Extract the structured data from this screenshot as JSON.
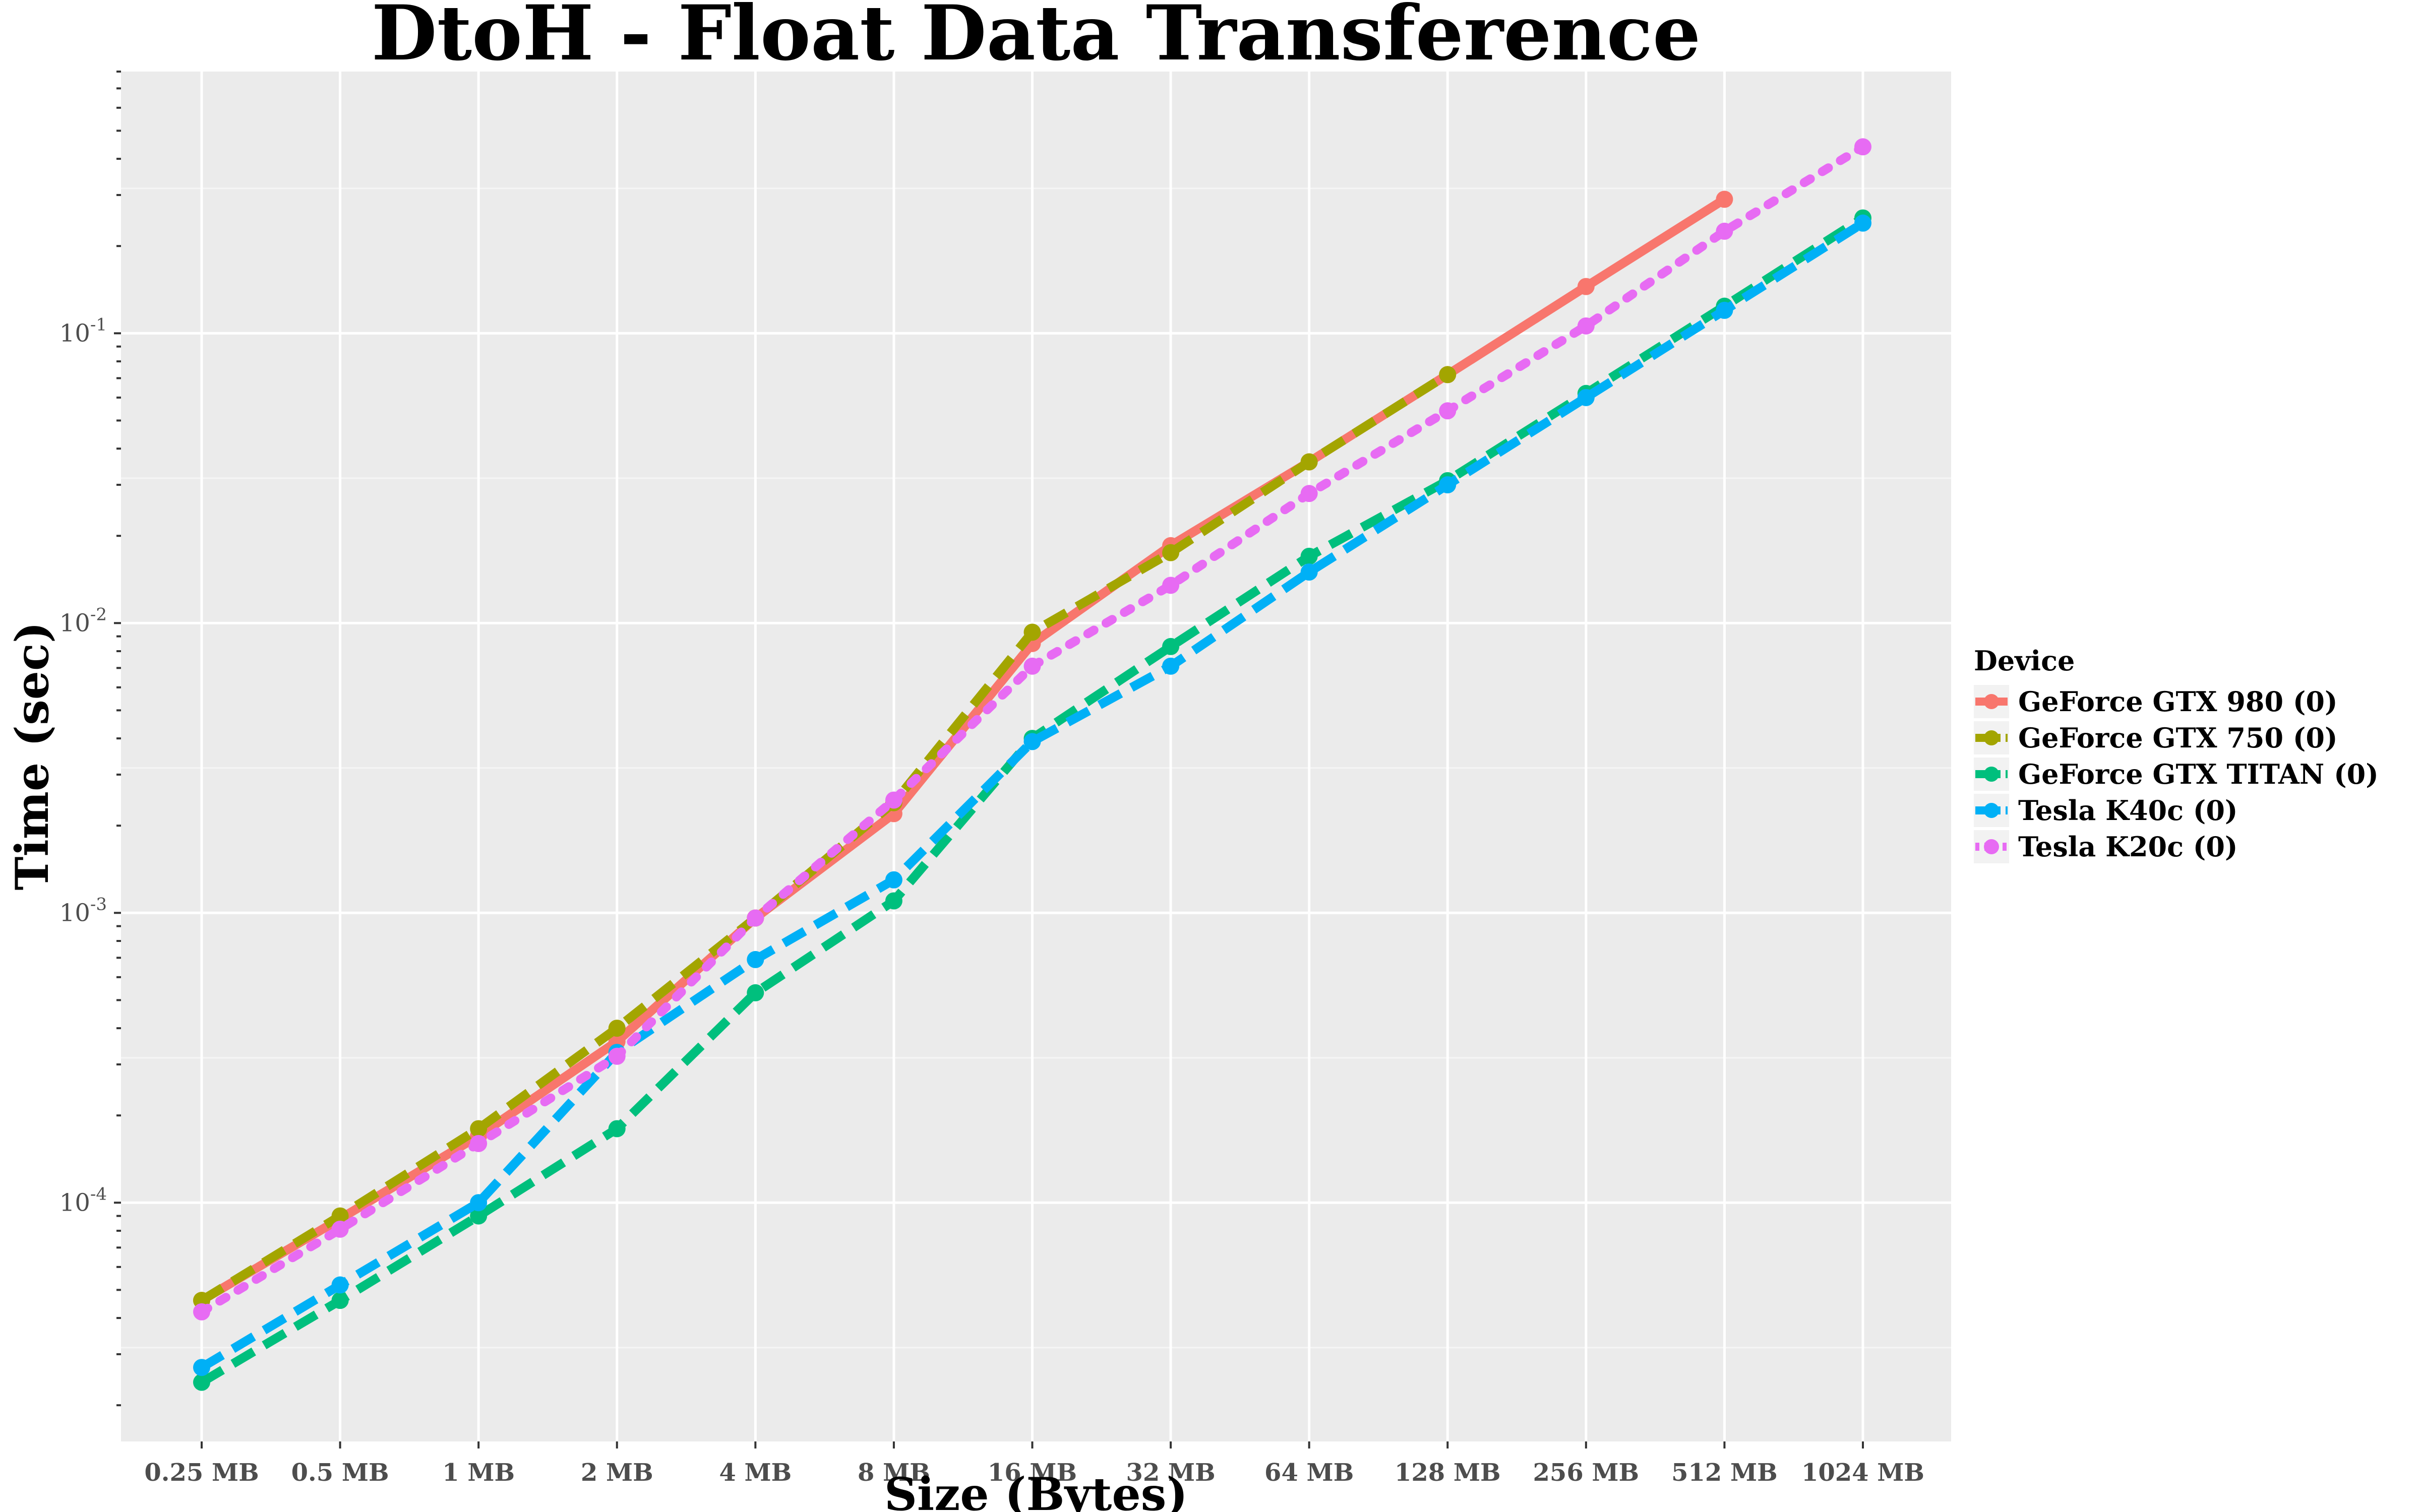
{
  "chart_data": {
    "type": "line",
    "title": "DtoH - Float Data Transference",
    "xlabel": "Size (Bytes)",
    "ylabel": "Time (sec)",
    "y_scale": "log",
    "ylim": [
      1.5e-05,
      0.8
    ],
    "grid": true,
    "legend": {
      "title": "Device",
      "position": "right"
    },
    "categories": [
      "0.25 MB",
      "0.5 MB",
      "1 MB",
      "2 MB",
      "4 MB",
      "8 MB",
      "16 MB",
      "32 MB",
      "64 MB",
      "128 MB",
      "256 MB",
      "512 MB",
      "1024 MB"
    ],
    "y_ticks": [
      {
        "base": "10",
        "exp": "-1",
        "value": 0.1
      },
      {
        "base": "10",
        "exp": "-2",
        "value": 0.01
      },
      {
        "base": "10",
        "exp": "-3",
        "value": 0.001
      },
      {
        "base": "10",
        "exp": "-4",
        "value": 0.0001
      }
    ],
    "series": [
      {
        "name": "GeForce GTX 980 (0)",
        "color": "#F8766D",
        "dash": "solid",
        "values": [
          4.6e-05,
          8.8e-05,
          0.00017,
          0.00036,
          0.00096,
          0.0022,
          0.0085,
          0.0185,
          0.036,
          0.072,
          0.145,
          0.29,
          null
        ]
      },
      {
        "name": "GeForce GTX 750 (0)",
        "color": "#A3A500",
        "dash": "dashed",
        "values": [
          4.6e-05,
          9e-05,
          0.00018,
          0.0004,
          0.00096,
          0.0024,
          0.0093,
          0.0175,
          0.036,
          0.072,
          null,
          null,
          null
        ]
      },
      {
        "name": "GeForce GTX TITAN (0)",
        "color": "#00BF7D",
        "dash": "dashed",
        "values": [
          2.4e-05,
          4.6e-05,
          9e-05,
          0.00018,
          0.00053,
          0.0011,
          0.004,
          0.0083,
          0.017,
          0.031,
          0.062,
          0.124,
          0.25
        ]
      },
      {
        "name": "Tesla K40c (0)",
        "color": "#00B0F6",
        "dash": "dashed",
        "values": [
          2.7e-05,
          5.2e-05,
          0.0001,
          0.00033,
          0.00069,
          0.0013,
          0.0039,
          0.0071,
          0.015,
          0.03,
          0.06,
          0.12,
          0.24
        ]
      },
      {
        "name": "Tesla K20c (0)",
        "color": "#E76BF3",
        "dash": "dotted",
        "values": [
          4.2e-05,
          8.1e-05,
          0.00016,
          0.00032,
          0.00096,
          0.00245,
          0.0071,
          0.0135,
          0.028,
          0.054,
          0.106,
          0.225,
          0.44
        ]
      }
    ]
  }
}
